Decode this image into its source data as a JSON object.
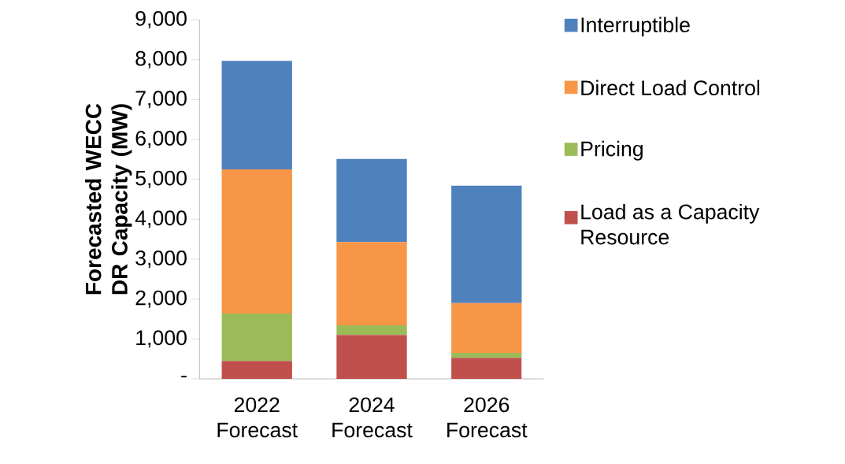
{
  "chart_data": {
    "type": "bar",
    "stacked": true,
    "ylabel": "Forecasted WECC DR Capacity (MW)",
    "categories": [
      "2022 Forecast",
      "2024 Forecast",
      "2026 Forecast"
    ],
    "series": [
      {
        "name": "Load as a Capacity Resource",
        "color": "#c0504d",
        "values": [
          450,
          1100,
          530
        ]
      },
      {
        "name": "Pricing",
        "color": "#9bbb59",
        "values": [
          1190,
          240,
          120
        ]
      },
      {
        "name": "Direct Load Control",
        "color": "#f79646",
        "values": [
          3610,
          2090,
          1250
        ]
      },
      {
        "name": "Interruptible",
        "color": "#4f81bd",
        "values": [
          2720,
          2080,
          2940
        ]
      }
    ],
    "ylim": [
      0,
      9000
    ],
    "yticks": [
      {
        "value": 0,
        "label": "-"
      },
      {
        "value": 1000,
        "label": "1,000"
      },
      {
        "value": 2000,
        "label": "2,000"
      },
      {
        "value": 3000,
        "label": "3,000"
      },
      {
        "value": 4000,
        "label": "4,000"
      },
      {
        "value": 5000,
        "label": "5,000"
      },
      {
        "value": 6000,
        "label": "6,000"
      },
      {
        "value": 7000,
        "label": "7,000"
      },
      {
        "value": 8000,
        "label": "8,000"
      },
      {
        "value": 9000,
        "label": "9,000"
      }
    ],
    "grid": false,
    "legend": "right"
  }
}
